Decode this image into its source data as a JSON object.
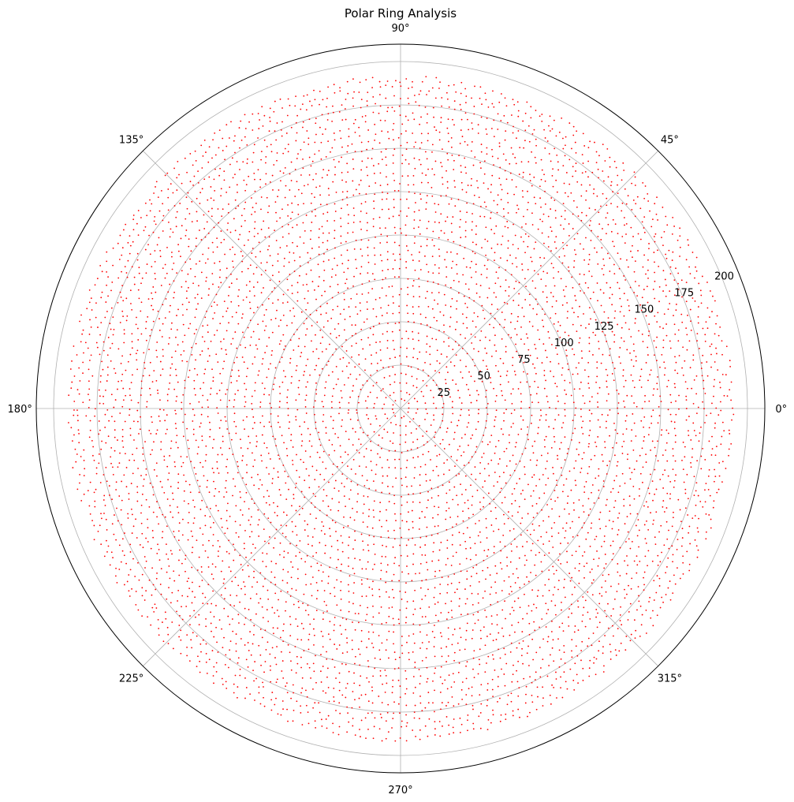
{
  "chart_data": {
    "type": "scatter",
    "projection": "polar",
    "title": "Polar Ring Analysis",
    "xlabel": "",
    "ylabel": "",
    "theta_ticks": [
      {
        "deg": 0,
        "label": "0°"
      },
      {
        "deg": 45,
        "label": "45°"
      },
      {
        "deg": 90,
        "label": "90°"
      },
      {
        "deg": 135,
        "label": "135°"
      },
      {
        "deg": 180,
        "label": "180°"
      },
      {
        "deg": 225,
        "label": "225°"
      },
      {
        "deg": 270,
        "label": "270°"
      },
      {
        "deg": 315,
        "label": "315°"
      }
    ],
    "r_ticks": [
      {
        "value": 25,
        "label": "25"
      },
      {
        "value": 50,
        "label": "50"
      },
      {
        "value": 75,
        "label": "75"
      },
      {
        "value": 100,
        "label": "100"
      },
      {
        "value": 125,
        "label": "125"
      },
      {
        "value": 150,
        "label": "150"
      },
      {
        "value": 175,
        "label": "175"
      },
      {
        "value": 200,
        "label": "200"
      }
    ],
    "rlim": [
      0,
      210
    ],
    "r_label_angle_deg": 22.5,
    "grid": true,
    "series": [
      {
        "marker_color": "#ff0000",
        "pattern": "concentric rings",
        "ring_radii": [
          5,
          10,
          15,
          20,
          25,
          30,
          35,
          40,
          45,
          50,
          55,
          60,
          65,
          70,
          75,
          80,
          85,
          90,
          95,
          100,
          105,
          110,
          115,
          120,
          125,
          130,
          135,
          140,
          145,
          150,
          155,
          160,
          165,
          170,
          175,
          180,
          185,
          190
        ],
        "points_per_ring": [
          12,
          20,
          28,
          36,
          44,
          52,
          60,
          68,
          76,
          84,
          92,
          100,
          108,
          116,
          124,
          132,
          140,
          148,
          156,
          164,
          172,
          180,
          188,
          196,
          204,
          212,
          220,
          228,
          236,
          244,
          252,
          260,
          268,
          276,
          284,
          292,
          300,
          308
        ],
        "radial_noise": 1.5
      }
    ]
  }
}
